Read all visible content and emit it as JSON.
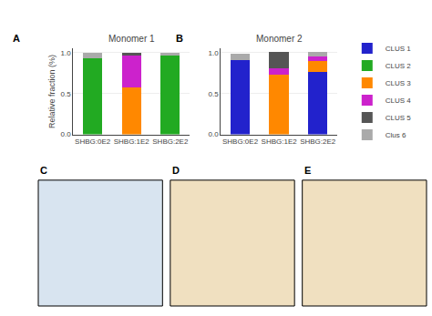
{
  "chart_data": [
    {
      "type": "bar",
      "stacked": true,
      "title": "Monomer 1",
      "categories": [
        "SHBG:0E2",
        "SHBG:1E2",
        "SHBG:2E2"
      ],
      "series": [
        {
          "name": "CLUS 1",
          "color": "#2222cc",
          "values": [
            0.0,
            0.0,
            0.0
          ]
        },
        {
          "name": "CLUS 2",
          "color": "#22aa22",
          "values": [
            0.93,
            0.0,
            0.96
          ]
        },
        {
          "name": "CLUS 3",
          "color": "#ff8800",
          "values": [
            0.0,
            0.57,
            0.0
          ]
        },
        {
          "name": "CLUS 4",
          "color": "#cc22cc",
          "values": [
            0.0,
            0.4,
            0.0
          ]
        },
        {
          "name": "CLUS 5",
          "color": "#555555",
          "values": [
            0.0,
            0.03,
            0.0
          ]
        },
        {
          "name": "Clus 6",
          "color": "#aaaaaa",
          "values": [
            0.07,
            0.0,
            0.04
          ]
        }
      ],
      "ylabel": "Relative fraction (%)",
      "ylim": [
        0,
        1.05
      ],
      "yticks": [
        {
          "value": 0.0,
          "label": "0.0"
        },
        {
          "value": 0.5,
          "label": "0.5"
        },
        {
          "value": 1.0,
          "label": "1.0"
        }
      ],
      "grid": true
    },
    {
      "type": "bar",
      "stacked": true,
      "title": "Monomer 2",
      "categories": [
        "SHBG:0E2",
        "SHBG:1E2",
        "SHBG:2E2"
      ],
      "series": [
        {
          "name": "CLUS 1",
          "color": "#2222cc",
          "values": [
            0.91,
            0.0,
            0.77
          ]
        },
        {
          "name": "CLUS 2",
          "color": "#22aa22",
          "values": [
            0.0,
            0.0,
            0.0
          ]
        },
        {
          "name": "CLUS 3",
          "color": "#ff8800",
          "values": [
            0.0,
            0.73,
            0.13
          ]
        },
        {
          "name": "CLUS 4",
          "color": "#cc22cc",
          "values": [
            0.0,
            0.08,
            0.05
          ]
        },
        {
          "name": "CLUS 5",
          "color": "#555555",
          "values": [
            0.0,
            0.2,
            0.0
          ]
        },
        {
          "name": "Clus 6",
          "color": "#aaaaaa",
          "values": [
            0.08,
            0.0,
            0.06
          ]
        }
      ],
      "ylim": [
        0,
        1.05
      ],
      "yticks": [
        {
          "value": 0.0,
          "label": "0.0"
        },
        {
          "value": 0.5,
          "label": "0.5"
        },
        {
          "value": 1.0,
          "label": "1.0"
        }
      ],
      "grid": true,
      "legend": "right"
    }
  ],
  "annotations": [
    "A",
    "B",
    "C",
    "D",
    "E"
  ]
}
